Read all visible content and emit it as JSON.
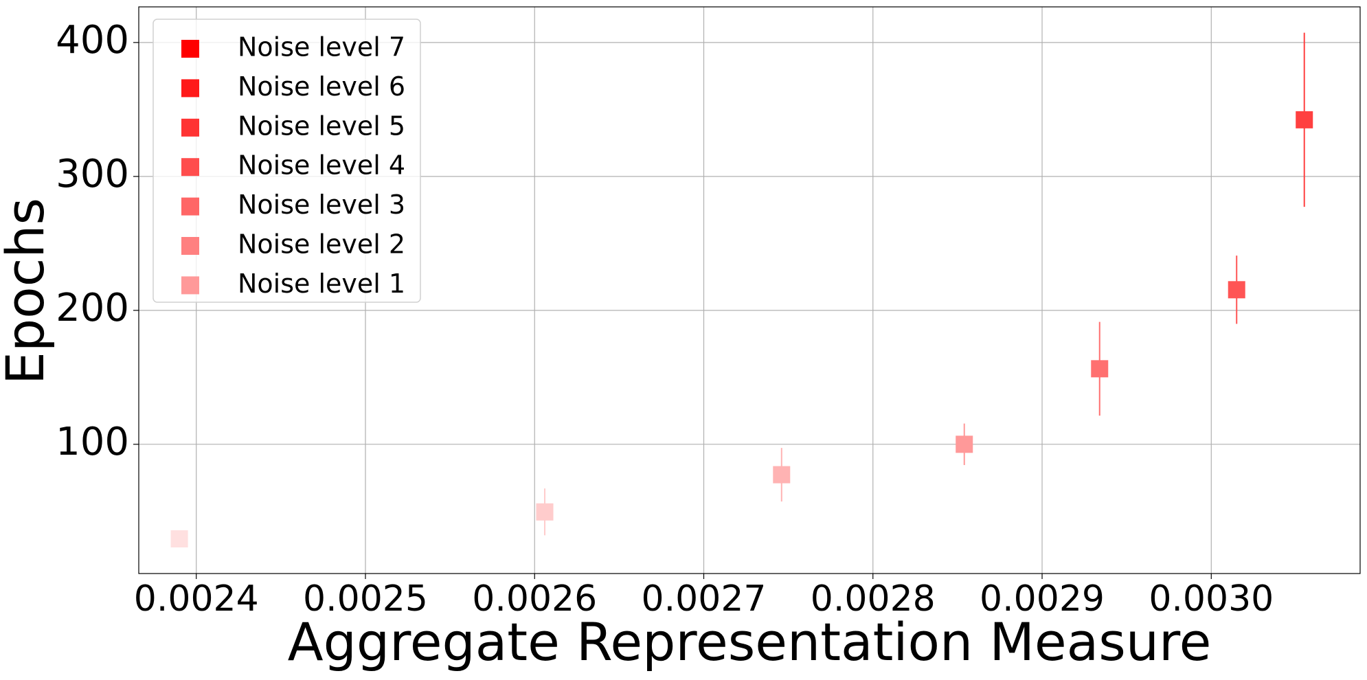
{
  "chart_data": {
    "type": "errorbar",
    "xlabel": "Aggregate Representation Measure",
    "ylabel": "Epochs",
    "x": [
      0.00239,
      0.002606,
      0.002746,
      0.002854,
      0.002934,
      0.003015,
      0.003055
    ],
    "values": [
      29.4,
      49.5,
      77.3,
      100,
      156.4,
      215.4,
      342.3
    ],
    "errors": [
      3,
      17.5,
      20,
      15.5,
      35,
      25.5,
      65
    ],
    "colors": [
      "#ffe0e0",
      "#ffcccc",
      "#ffb3b3",
      "#ff9999",
      "#ff7070",
      "#ff5555",
      "#ff4040"
    ],
    "legend": [
      {
        "name": "Noise level 7",
        "color": "#ff0000"
      },
      {
        "name": "Noise level 6",
        "color": "#ff1a1a"
      },
      {
        "name": "Noise level 5",
        "color": "#ff3333"
      },
      {
        "name": "Noise level 4",
        "color": "#ff4d4d"
      },
      {
        "name": "Noise level 3",
        "color": "#ff6666"
      },
      {
        "name": "Noise level 2",
        "color": "#ff8080"
      },
      {
        "name": "Noise level 1",
        "color": "#ff9999"
      }
    ],
    "legend_position": "upper left",
    "grid": true,
    "xlim": [
      0.002366,
      0.003088
    ],
    "ylim": [
      3.5,
      426.6
    ],
    "xticks": [
      0.0024,
      0.0025,
      0.0026,
      0.0027,
      0.0028,
      0.0029,
      {
        "value": 0.003,
        "label": "0.0030"
      }
    ],
    "yticks": [
      100,
      200,
      300,
      400
    ]
  }
}
